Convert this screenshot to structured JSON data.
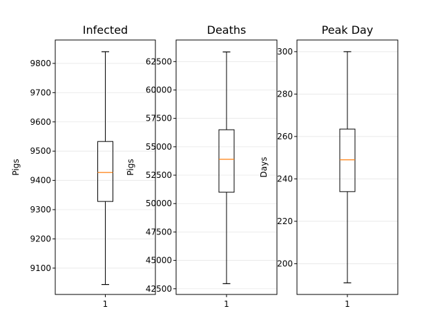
{
  "chart_data": [
    {
      "type": "box",
      "title": "Infected",
      "xlabel": "",
      "ylabel": "Pigs",
      "categories": [
        "1"
      ],
      "ylim": [
        9010,
        9880
      ],
      "yticks": [
        9100,
        9200,
        9300,
        9400,
        9500,
        9600,
        9700,
        9800
      ],
      "ytick_labels": [
        "9100",
        "9200",
        "9300",
        "9400",
        "9500",
        "9600",
        "9700",
        "9800"
      ],
      "grid": true,
      "box": {
        "min": 9044,
        "q1": 9328,
        "median": 9427,
        "q3": 9533,
        "max": 9840
      }
    },
    {
      "type": "box",
      "title": "Deaths",
      "xlabel": "",
      "ylabel": "Pigs",
      "categories": [
        "1"
      ],
      "ylim": [
        42000,
        64400
      ],
      "yticks": [
        42500,
        45000,
        47500,
        50000,
        52500,
        55000,
        57500,
        60000,
        62500
      ],
      "ytick_labels": [
        "42500",
        "45000",
        "47500",
        "50000",
        "52500",
        "55000",
        "57500",
        "60000",
        "62500"
      ],
      "grid": true,
      "box": {
        "min": 42950,
        "q1": 51000,
        "median": 53900,
        "q3": 56500,
        "max": 63350
      }
    },
    {
      "type": "box",
      "title": "Peak Day",
      "xlabel": "",
      "ylabel": "Days",
      "categories": [
        "1"
      ],
      "ylim": [
        185.5,
        305.5
      ],
      "yticks": [
        200,
        220,
        240,
        260,
        280,
        300
      ],
      "ytick_labels": [
        "200",
        "220",
        "240",
        "260",
        "280",
        "300"
      ],
      "grid": true,
      "box": {
        "min": 191,
        "q1": 234,
        "median": 249,
        "q3": 263.5,
        "max": 300
      }
    }
  ],
  "colors": {
    "box": "#000000",
    "median": "#ff7f0e",
    "grid": "#e6e6e6",
    "axes": "#000000"
  }
}
